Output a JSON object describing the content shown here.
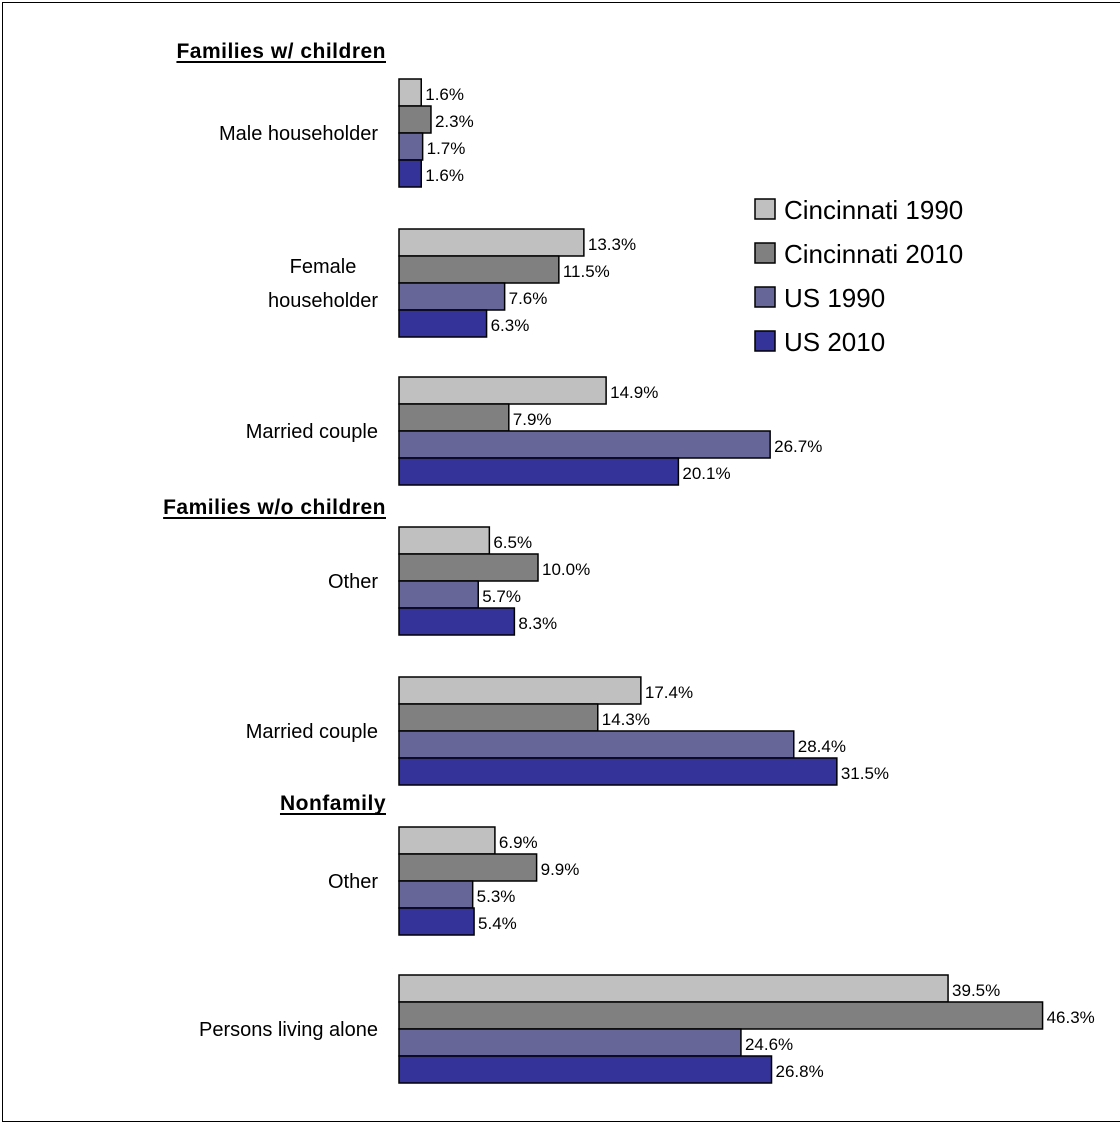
{
  "chart_data": {
    "type": "bar",
    "orientation": "horizontal",
    "value_format": "percent",
    "groups": [
      {
        "label": "Families w/ children",
        "category_count": 3
      },
      {
        "label": "Families w/o children",
        "category_count": 2
      },
      {
        "label": "Nonfamily",
        "category_count": 2
      }
    ],
    "categories": [
      [
        "Male householder"
      ],
      [
        "Female",
        "householder"
      ],
      [
        "Married couple"
      ],
      [
        "Other"
      ],
      [
        "Married couple"
      ],
      [
        "Other"
      ],
      [
        "Persons living alone"
      ]
    ],
    "series": [
      {
        "name": "Cincinnati 1990",
        "color": "#c0c0c0",
        "values": [
          1.6,
          13.3,
          14.9,
          6.5,
          17.4,
          6.9,
          39.5
        ]
      },
      {
        "name": "Cincinnati 2010",
        "color": "#808080",
        "values": [
          2.3,
          11.5,
          7.9,
          10.0,
          14.3,
          9.9,
          46.3
        ]
      },
      {
        "name": "US 1990",
        "color": "#666699",
        "values": [
          1.7,
          7.6,
          26.7,
          5.7,
          28.4,
          5.3,
          24.6
        ]
      },
      {
        "name": "US 2010",
        "color": "#333399",
        "values": [
          1.6,
          6.3,
          20.1,
          8.3,
          31.5,
          5.4,
          26.8
        ]
      }
    ],
    "legend_position": "right",
    "grid": false
  }
}
